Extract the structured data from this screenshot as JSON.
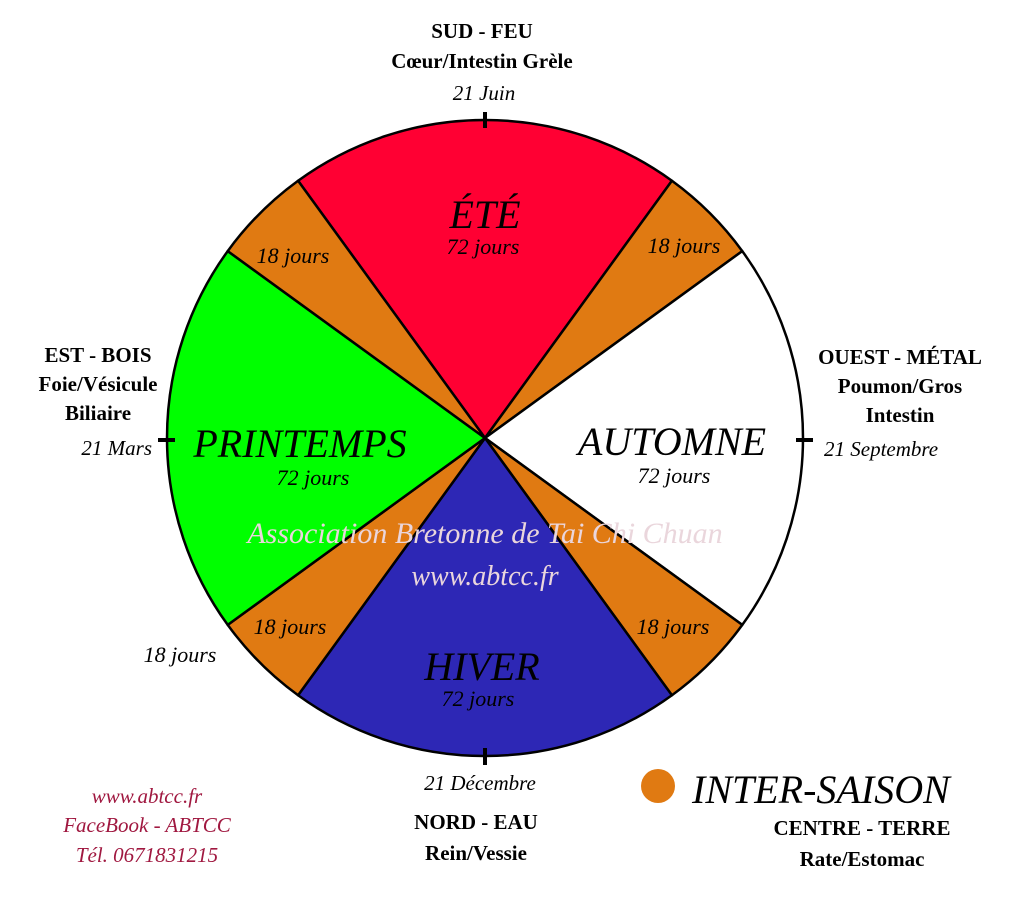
{
  "segments": [
    {
      "name": "ÉTÉ",
      "days": 72,
      "days_label": "72 jours",
      "color": "#ff0033"
    },
    {
      "name": "",
      "days": 18,
      "days_label": "18 jours",
      "color": "#e07a12"
    },
    {
      "name": "AUTOMNE",
      "days": 72,
      "days_label": "72 jours",
      "color": "#ffffff"
    },
    {
      "name": "",
      "days": 18,
      "days_label": "18 jours",
      "color": "#e07a12"
    },
    {
      "name": "HIVER",
      "days": 72,
      "days_label": "72 jours",
      "color": "#2d27b5"
    },
    {
      "name": "",
      "days": 18,
      "days_label": "18 jours",
      "color": "#e07a12"
    },
    {
      "name": "PRINTEMPS",
      "days": 72,
      "days_label": "72 jours",
      "color": "#00ff00"
    },
    {
      "name": "",
      "days": 18,
      "days_label": "18 jours",
      "color": "#e07a12"
    }
  ],
  "directions": {
    "south": {
      "title": "SUD - FEU",
      "organs": "Cœur/Intestin Grèle",
      "date": "21 Juin"
    },
    "west": {
      "title": "OUEST - MÉTAL",
      "organs1": "Poumon/Gros",
      "organs2": "Intestin",
      "date": "21 Septembre"
    },
    "north": {
      "title": "NORD - EAU",
      "organs": "Rein/Vessie",
      "date": "21 Décembre"
    },
    "east": {
      "title": "EST - BOIS",
      "organs1": "Foie/Vésicule",
      "organs2": "Biliaire",
      "date": "21 Mars"
    }
  },
  "outside_label": "18 jours",
  "legend": {
    "label": "INTER-SAISON",
    "sub1": "CENTRE - TERRE",
    "sub2": "Rate/Estomac",
    "color": "#e07a12"
  },
  "contact": {
    "web": "www.abtcc.fr",
    "facebook": "FaceBook - ABTCC",
    "phone": "Tél. 0671831215",
    "color": "#a01840"
  },
  "watermark": {
    "line1": "Association Bretonne de Tai Chi Chuan",
    "line2": "www.abtcc.fr"
  }
}
